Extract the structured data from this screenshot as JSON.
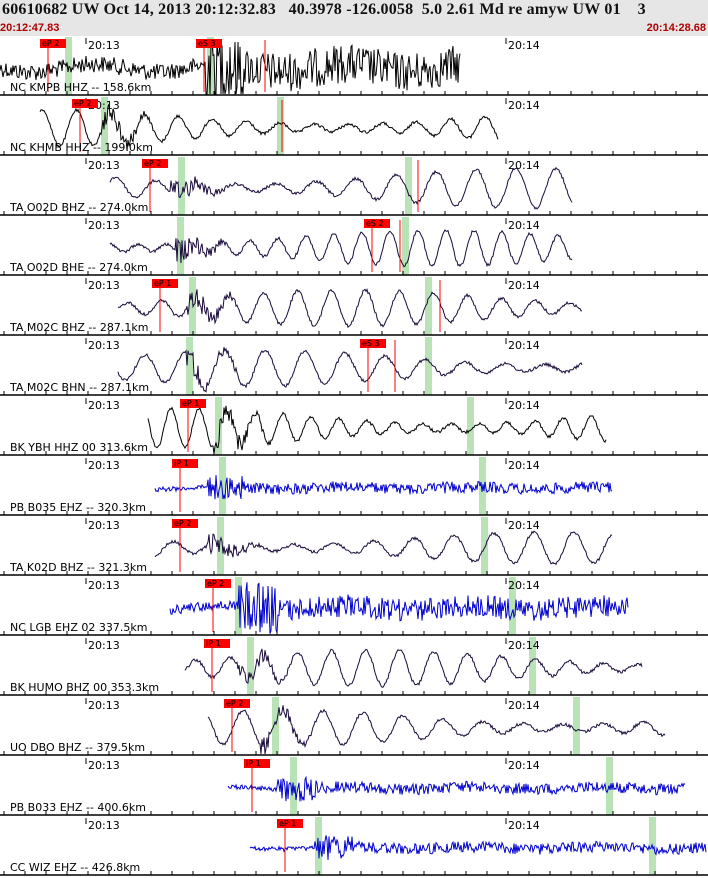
{
  "header": {
    "title": "60610682 UW Oct 14, 2013 20:12:32.83   40.3978 -126.0058  5.0 2.61 Md re amyw UW 01    3",
    "start_time": "20:12:47.83",
    "end_time": "20:14:28.68"
  },
  "colors": {
    "header_bg": "#e6e6e6",
    "time_text": "#b00000",
    "pick_box": "#ff0000",
    "window": "#b9e3b6",
    "trace_dark": "#1a0a3a",
    "trace_blue": "#0000d0"
  },
  "tick_labels": {
    "left": "20:13",
    "right": "20:14"
  },
  "traces": [
    {
      "label": "NC KMPB HHZ -- 158.6km",
      "color": "black",
      "picks": [
        "eP 2",
        "eS 3"
      ]
    },
    {
      "label": "NC KHMB HHZ -- 199.0km",
      "color": "black",
      "picks": [
        "eP 2"
      ]
    },
    {
      "label": "TA O02D BHZ -- 274.0km",
      "color": "dark",
      "picks": [
        "eP 2"
      ]
    },
    {
      "label": "TA O02D BHE -- 274.0km",
      "color": "dark",
      "picks": [
        "eS 2"
      ]
    },
    {
      "label": "TA M02C BHZ -- 287.1km",
      "color": "dark",
      "picks": [
        "eP 1"
      ]
    },
    {
      "label": "TA M02C BHN -- 287.1km",
      "color": "dark",
      "picks": [
        "eS 3"
      ]
    },
    {
      "label": "BK YBH HHZ 00 313.6km",
      "color": "black",
      "picks": [
        "eP 1"
      ]
    },
    {
      "label": "PB B035 EHZ -- 320.3km",
      "color": "blue",
      "picks": [
        "iP 1"
      ]
    },
    {
      "label": "TA K02D BHZ -- 321.3km",
      "color": "dark",
      "picks": [
        "eP 2"
      ]
    },
    {
      "label": "NC LGB EHZ 02 337.5km",
      "color": "blue",
      "picks": [
        "eP 2"
      ]
    },
    {
      "label": "BK HUMO BHZ 00 353.3km",
      "color": "dark",
      "picks": [
        "iP 1"
      ]
    },
    {
      "label": "UO DBO BHZ -- 379.5km",
      "color": "dark",
      "picks": [
        "eP 2"
      ]
    },
    {
      "label": "PB B033 EHZ -- 400.6km",
      "color": "blue",
      "picks": [
        "iP 1"
      ]
    },
    {
      "label": "CC WIZ EHZ -- 426.8km",
      "color": "blue",
      "picks": [
        "eP 1"
      ]
    }
  ]
}
